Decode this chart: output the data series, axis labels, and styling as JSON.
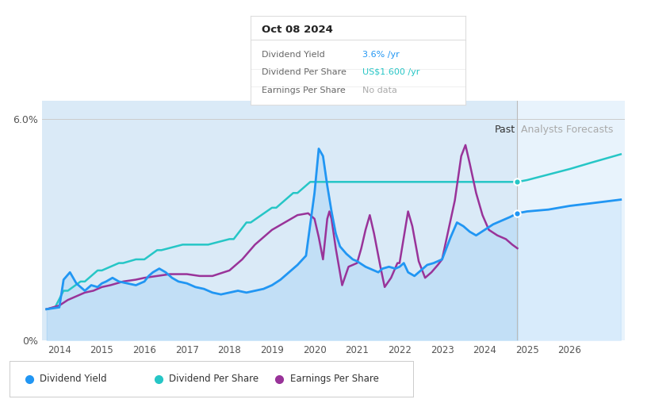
{
  "tooltip_date": "Oct 08 2024",
  "tooltip_yield": "3.6%",
  "tooltip_dps": "US$1.600",
  "tooltip_eps": "No data",
  "x_min": 2013.6,
  "x_max": 2027.3,
  "y_min": 0.0,
  "y_max": 6.5,
  "past_cutoff": 2024.77,
  "bg_color": "#ffffff",
  "past_fill_color": "#daeaf7",
  "forecast_fill_color": "#e8f3fc",
  "dividend_yield_color": "#2196F3",
  "dividend_per_share_color": "#26C6C6",
  "earnings_per_share_color": "#993399",
  "legend_items": [
    "Dividend Yield",
    "Dividend Per Share",
    "Earnings Per Share"
  ],
  "dividend_yield_data": [
    [
      2013.7,
      0.85
    ],
    [
      2014.0,
      0.9
    ],
    [
      2014.1,
      1.65
    ],
    [
      2014.25,
      1.85
    ],
    [
      2014.4,
      1.55
    ],
    [
      2014.6,
      1.35
    ],
    [
      2014.75,
      1.5
    ],
    [
      2014.9,
      1.45
    ],
    [
      2015.0,
      1.55
    ],
    [
      2015.1,
      1.6
    ],
    [
      2015.25,
      1.7
    ],
    [
      2015.4,
      1.6
    ],
    [
      2015.6,
      1.55
    ],
    [
      2015.8,
      1.5
    ],
    [
      2016.0,
      1.6
    ],
    [
      2016.1,
      1.75
    ],
    [
      2016.2,
      1.85
    ],
    [
      2016.35,
      1.95
    ],
    [
      2016.5,
      1.85
    ],
    [
      2016.65,
      1.7
    ],
    [
      2016.8,
      1.6
    ],
    [
      2017.0,
      1.55
    ],
    [
      2017.2,
      1.45
    ],
    [
      2017.4,
      1.4
    ],
    [
      2017.6,
      1.3
    ],
    [
      2017.8,
      1.25
    ],
    [
      2018.0,
      1.3
    ],
    [
      2018.2,
      1.35
    ],
    [
      2018.4,
      1.3
    ],
    [
      2018.6,
      1.35
    ],
    [
      2018.8,
      1.4
    ],
    [
      2019.0,
      1.5
    ],
    [
      2019.2,
      1.65
    ],
    [
      2019.4,
      1.85
    ],
    [
      2019.6,
      2.05
    ],
    [
      2019.8,
      2.3
    ],
    [
      2020.0,
      4.0
    ],
    [
      2020.1,
      5.2
    ],
    [
      2020.2,
      5.0
    ],
    [
      2020.3,
      4.2
    ],
    [
      2020.4,
      3.5
    ],
    [
      2020.5,
      2.9
    ],
    [
      2020.6,
      2.55
    ],
    [
      2020.75,
      2.35
    ],
    [
      2020.9,
      2.2
    ],
    [
      2021.0,
      2.15
    ],
    [
      2021.2,
      2.0
    ],
    [
      2021.4,
      1.9
    ],
    [
      2021.5,
      1.85
    ],
    [
      2021.6,
      1.95
    ],
    [
      2021.75,
      2.0
    ],
    [
      2021.9,
      1.95
    ],
    [
      2022.0,
      2.0
    ],
    [
      2022.1,
      2.1
    ],
    [
      2022.2,
      1.85
    ],
    [
      2022.35,
      1.75
    ],
    [
      2022.5,
      1.9
    ],
    [
      2022.65,
      2.05
    ],
    [
      2022.8,
      2.1
    ],
    [
      2023.0,
      2.2
    ],
    [
      2023.2,
      2.8
    ],
    [
      2023.35,
      3.2
    ],
    [
      2023.5,
      3.1
    ],
    [
      2023.65,
      2.95
    ],
    [
      2023.8,
      2.85
    ],
    [
      2024.0,
      3.0
    ],
    [
      2024.2,
      3.15
    ],
    [
      2024.4,
      3.25
    ],
    [
      2024.6,
      3.35
    ],
    [
      2024.77,
      3.45
    ]
  ],
  "dividend_yield_forecast": [
    [
      2024.77,
      3.45
    ],
    [
      2025.0,
      3.5
    ],
    [
      2025.5,
      3.55
    ],
    [
      2026.0,
      3.65
    ],
    [
      2026.5,
      3.72
    ],
    [
      2027.2,
      3.82
    ]
  ],
  "dividend_per_share_data": [
    [
      2013.7,
      0.85
    ],
    [
      2013.9,
      0.9
    ],
    [
      2014.1,
      1.35
    ],
    [
      2014.2,
      1.35
    ],
    [
      2014.5,
      1.6
    ],
    [
      2014.6,
      1.6
    ],
    [
      2014.9,
      1.9
    ],
    [
      2015.0,
      1.9
    ],
    [
      2015.4,
      2.1
    ],
    [
      2015.5,
      2.1
    ],
    [
      2015.8,
      2.2
    ],
    [
      2016.0,
      2.2
    ],
    [
      2016.3,
      2.45
    ],
    [
      2016.4,
      2.45
    ],
    [
      2016.9,
      2.6
    ],
    [
      2017.0,
      2.6
    ],
    [
      2017.4,
      2.6
    ],
    [
      2017.5,
      2.6
    ],
    [
      2018.0,
      2.75
    ],
    [
      2018.1,
      2.75
    ],
    [
      2018.4,
      3.2
    ],
    [
      2018.5,
      3.2
    ],
    [
      2019.0,
      3.6
    ],
    [
      2019.1,
      3.6
    ],
    [
      2019.5,
      4.0
    ],
    [
      2019.6,
      4.0
    ],
    [
      2019.9,
      4.3
    ],
    [
      2020.0,
      4.3
    ],
    [
      2024.77,
      4.3
    ]
  ],
  "dividend_per_share_forecast": [
    [
      2024.77,
      4.3
    ],
    [
      2025.0,
      4.35
    ],
    [
      2025.5,
      4.5
    ],
    [
      2026.0,
      4.65
    ],
    [
      2026.5,
      4.82
    ],
    [
      2027.2,
      5.05
    ]
  ],
  "earnings_per_share_data": [
    [
      2013.7,
      0.85
    ],
    [
      2014.0,
      0.95
    ],
    [
      2014.2,
      1.1
    ],
    [
      2014.4,
      1.2
    ],
    [
      2014.6,
      1.3
    ],
    [
      2014.8,
      1.35
    ],
    [
      2015.0,
      1.45
    ],
    [
      2015.2,
      1.5
    ],
    [
      2015.5,
      1.6
    ],
    [
      2015.8,
      1.65
    ],
    [
      2016.0,
      1.7
    ],
    [
      2016.3,
      1.75
    ],
    [
      2016.6,
      1.8
    ],
    [
      2017.0,
      1.8
    ],
    [
      2017.3,
      1.75
    ],
    [
      2017.6,
      1.75
    ],
    [
      2018.0,
      1.9
    ],
    [
      2018.3,
      2.2
    ],
    [
      2018.6,
      2.6
    ],
    [
      2019.0,
      3.0
    ],
    [
      2019.3,
      3.2
    ],
    [
      2019.6,
      3.4
    ],
    [
      2019.85,
      3.45
    ],
    [
      2020.0,
      3.3
    ],
    [
      2020.1,
      2.8
    ],
    [
      2020.2,
      2.2
    ],
    [
      2020.3,
      3.3
    ],
    [
      2020.35,
      3.5
    ],
    [
      2020.4,
      3.3
    ],
    [
      2020.5,
      2.5
    ],
    [
      2020.65,
      1.5
    ],
    [
      2020.8,
      2.0
    ],
    [
      2021.0,
      2.1
    ],
    [
      2021.1,
      2.5
    ],
    [
      2021.2,
      3.0
    ],
    [
      2021.3,
      3.4
    ],
    [
      2021.4,
      2.9
    ],
    [
      2021.55,
      2.0
    ],
    [
      2021.65,
      1.45
    ],
    [
      2021.8,
      1.7
    ],
    [
      2021.95,
      2.1
    ],
    [
      2022.0,
      2.1
    ],
    [
      2022.1,
      2.8
    ],
    [
      2022.2,
      3.5
    ],
    [
      2022.3,
      3.1
    ],
    [
      2022.45,
      2.15
    ],
    [
      2022.6,
      1.7
    ],
    [
      2022.75,
      1.85
    ],
    [
      2022.9,
      2.05
    ],
    [
      2023.0,
      2.2
    ],
    [
      2023.15,
      3.0
    ],
    [
      2023.3,
      3.8
    ],
    [
      2023.45,
      5.0
    ],
    [
      2023.55,
      5.3
    ],
    [
      2023.65,
      4.8
    ],
    [
      2023.8,
      4.0
    ],
    [
      2023.95,
      3.4
    ],
    [
      2024.1,
      3.0
    ],
    [
      2024.3,
      2.85
    ],
    [
      2024.5,
      2.75
    ],
    [
      2024.65,
      2.6
    ],
    [
      2024.77,
      2.5
    ]
  ],
  "forecast_dot_x": 2024.77,
  "forecast_dot_y": 3.45,
  "dps_dot_x": 2024.77,
  "dps_dot_y": 4.3
}
